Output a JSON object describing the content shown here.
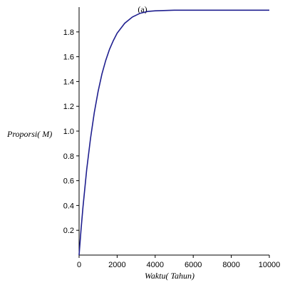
{
  "chart_data": {
    "type": "line",
    "title": "(a)",
    "xlabel": "Waktu( Tahun)",
    "ylabel": "Proporsi( M)",
    "xlim": [
      0,
      10000
    ],
    "ylim": [
      0,
      2.0
    ],
    "x_ticks": [
      0,
      2000,
      4000,
      6000,
      8000,
      10000
    ],
    "y_ticks": [
      0.2,
      0.4,
      0.6,
      0.8,
      1.0,
      1.2,
      1.4,
      1.6,
      1.8
    ],
    "x_tick_labels": [
      "0",
      "2000",
      "4000",
      "6000",
      "8000",
      "10000"
    ],
    "y_tick_labels": [
      "0.2",
      "0.4",
      "0.6",
      "0.8",
      "1.0",
      "1.2",
      "1.4",
      "1.6",
      "1.8"
    ],
    "grid": false,
    "line_color": "#1f1f8f",
    "series": [
      {
        "x": [
          0,
          100,
          200,
          400,
          600,
          800,
          1000,
          1200,
          1400,
          1600,
          1800,
          2000,
          2400,
          2800,
          3200,
          3600,
          4000,
          5000,
          6000,
          7000,
          8000,
          9000,
          10000
        ],
        "values": [
          0.0,
          0.2,
          0.38,
          0.69,
          0.94,
          1.15,
          1.32,
          1.46,
          1.57,
          1.66,
          1.73,
          1.79,
          1.87,
          1.92,
          1.95,
          1.965,
          1.97,
          1.975,
          1.975,
          1.975,
          1.975,
          1.975,
          1.975
        ]
      }
    ]
  }
}
